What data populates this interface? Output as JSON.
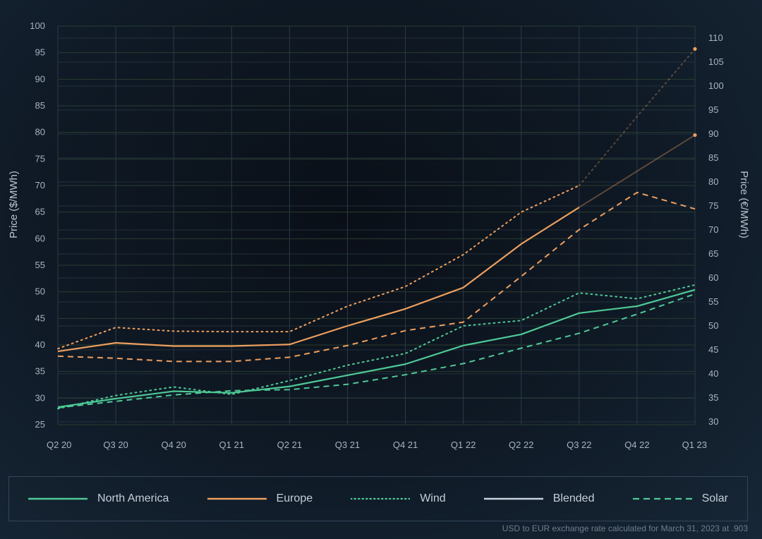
{
  "chart_data": {
    "type": "line",
    "title": "",
    "categories": [
      "Q2 20",
      "Q3 20",
      "Q4 20",
      "Q1 21",
      "Q2 21",
      "Q3 21",
      "Q4 21",
      "Q1 22",
      "Q2 22",
      "Q3 22",
      "Q4 22",
      "Q1 23"
    ],
    "ylabel": "Price ($/MWh)",
    "ylabel_right": "Price (€/MWh)",
    "ylim": [
      25,
      100
    ],
    "ylim_right": [
      29.4,
      112.5
    ],
    "yticks": [
      25,
      30,
      35,
      40,
      45,
      50,
      55,
      60,
      65,
      70,
      75,
      80,
      85,
      90,
      95,
      100
    ],
    "yticks_right": [
      30,
      35,
      40,
      45,
      50,
      55,
      60,
      65,
      70,
      75,
      80,
      85,
      90,
      95,
      100,
      105,
      110
    ],
    "grid": true,
    "legend_position": "bottom",
    "colors": {
      "north_america": "#4ec996",
      "europe": "#ee9f5e",
      "blended_legend": "#c8d2dc"
    },
    "series": [
      {
        "region": "North America",
        "type": "Blended",
        "values": [
          28.3,
          29.9,
          31.3,
          31.0,
          32.2,
          34.3,
          36.4,
          39.9,
          42.0,
          46.0,
          47.3,
          50.4
        ]
      },
      {
        "region": "North America",
        "type": "Wind",
        "values": [
          28.0,
          30.5,
          32.1,
          30.7,
          33.3,
          36.2,
          38.4,
          43.6,
          44.6,
          49.8,
          48.7,
          51.3
        ]
      },
      {
        "region": "North America",
        "type": "Solar",
        "values": [
          28.2,
          29.4,
          30.6,
          31.4,
          31.6,
          32.6,
          34.4,
          36.5,
          39.4,
          42.2,
          45.8,
          49.6
        ]
      },
      {
        "region": "Europe",
        "type": "Blended",
        "values": [
          38.8,
          40.4,
          39.8,
          39.8,
          40.1,
          43.6,
          46.8,
          50.8,
          59.0,
          65.9,
          72.7,
          79.5
        ]
      },
      {
        "region": "Europe",
        "type": "Wind",
        "values": [
          39.3,
          43.3,
          42.6,
          42.5,
          42.5,
          47.3,
          51.0,
          57.0,
          65.0,
          70.0,
          83.0,
          95.7
        ]
      },
      {
        "region": "Europe",
        "type": "Solar",
        "values": [
          37.9,
          37.5,
          36.9,
          36.9,
          37.7,
          39.9,
          42.7,
          44.3,
          52.9,
          61.7,
          68.7,
          65.6
        ]
      }
    ]
  },
  "legend": {
    "items": [
      {
        "label": "North America",
        "style": "solid-na"
      },
      {
        "label": "Europe",
        "style": "solid-eu"
      },
      {
        "label": "Wind",
        "style": "dotted"
      },
      {
        "label": "Blended",
        "style": "solid-neutral"
      },
      {
        "label": "Solar",
        "style": "dashed"
      }
    ]
  },
  "footnote": "USD to EUR exchange rate calculated for March 31, 2023 at .903"
}
